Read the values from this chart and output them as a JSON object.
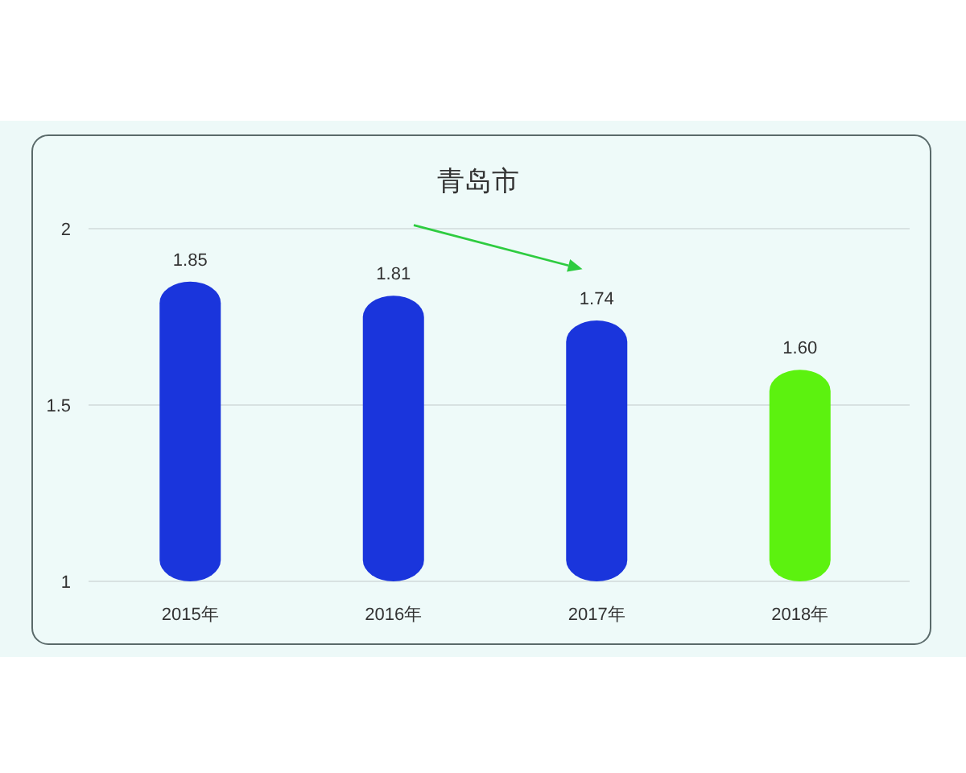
{
  "chart_data": {
    "type": "bar",
    "title": "青岛市",
    "categories": [
      "2015年",
      "2016年",
      "2017年",
      "2018年"
    ],
    "values": [
      1.85,
      1.81,
      1.74,
      1.6
    ],
    "colors": [
      "#1a35dc",
      "#1a35dc",
      "#1a35dc",
      "#5cf20f"
    ],
    "value_labels": [
      "1.85",
      "1.81",
      "1.74",
      "1.60"
    ],
    "ylim": [
      1,
      2
    ],
    "yticks": [
      1,
      1.5,
      2
    ],
    "grid": "y"
  }
}
